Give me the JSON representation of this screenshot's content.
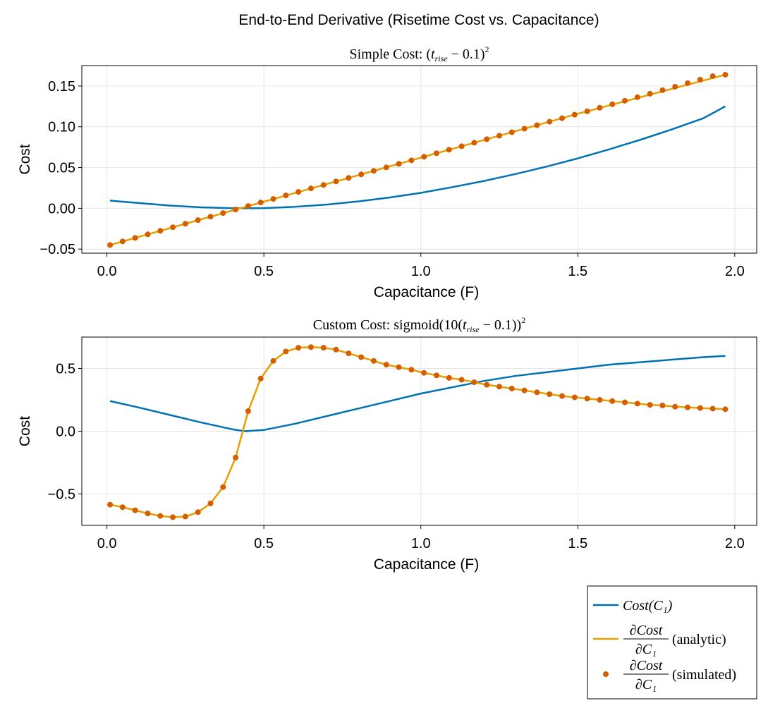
{
  "figure": {
    "suptitle": "End-to-End Derivative (Risetime Cost vs. Capacitance)"
  },
  "colors": {
    "cost": "#0072b2",
    "analytic": "#e69f00",
    "simulated": "#d55e00",
    "grid": "#e6e6e6",
    "axis": "#000000"
  },
  "legend": {
    "placement": "bottom-right",
    "entries": [
      {
        "series": "cost",
        "marker": "line",
        "text": "Cost(C₁)"
      },
      {
        "series": "analytic",
        "marker": "line",
        "num": "∂Cost",
        "den": "∂C₁",
        "suffix": "(analytic)"
      },
      {
        "series": "simulated",
        "marker": "dot",
        "num": "∂Cost",
        "den": "∂C₁",
        "suffix": "(simulated)"
      }
    ]
  },
  "chart_data": [
    {
      "type": "line",
      "title": "Simple Cost: (t_rise − 0.1)²",
      "title_main": "Simple Cost: (",
      "title_var": "t",
      "title_sub": "rise",
      "title_mid": " − 0.1)",
      "title_sup": "2",
      "title_tail": "",
      "xlabel": "Capacitance (F)",
      "ylabel": "Cost",
      "xlim": [
        -0.08,
        2.07
      ],
      "ylim": [
        -0.055,
        0.175
      ],
      "xticks": [
        0.0,
        0.5,
        1.0,
        1.5,
        2.0
      ],
      "xtick_labels": [
        "0.0",
        "0.5",
        "1.0",
        "1.5",
        "2.0"
      ],
      "yticks": [
        -0.05,
        0.0,
        0.05,
        0.1,
        0.15
      ],
      "ytick_labels": [
        "−0.05",
        "0.00",
        "0.05",
        "0.10",
        "0.15"
      ],
      "grid": true,
      "series": [
        {
          "id": "cost",
          "kind": "line",
          "name": "Cost(C₁)",
          "x": [
            0.01,
            0.1,
            0.2,
            0.3,
            0.4,
            0.44,
            0.5,
            0.6,
            0.7,
            0.8,
            0.9,
            1.0,
            1.1,
            1.2,
            1.3,
            1.4,
            1.5,
            1.6,
            1.7,
            1.8,
            1.9,
            1.97
          ],
          "y": [
            0.0094,
            0.0065,
            0.0034,
            0.0012,
            0.0001,
            0.0,
            0.0002,
            0.0019,
            0.0046,
            0.0084,
            0.0132,
            0.0189,
            0.0259,
            0.0334,
            0.0419,
            0.0511,
            0.0612,
            0.0723,
            0.0841,
            0.0968,
            0.1104,
            0.125
          ]
        },
        {
          "id": "analytic",
          "kind": "line",
          "name": "∂Cost/∂C₁ (analytic)",
          "x": [
            0.01,
            0.44,
            1.0,
            1.5,
            1.97
          ],
          "y": [
            -0.045,
            0.0016,
            0.0621,
            0.1159,
            0.1638
          ]
        },
        {
          "id": "simulated",
          "kind": "scatter",
          "name": "∂Cost/∂C₁ (simulated)",
          "x": [
            0.01,
            0.05,
            0.09,
            0.13,
            0.17,
            0.21,
            0.25,
            0.29,
            0.33,
            0.37,
            0.41,
            0.45,
            0.49,
            0.53,
            0.57,
            0.61,
            0.65,
            0.69,
            0.73,
            0.77,
            0.81,
            0.85,
            0.89,
            0.93,
            0.97,
            1.01,
            1.05,
            1.09,
            1.13,
            1.17,
            1.21,
            1.25,
            1.29,
            1.33,
            1.37,
            1.41,
            1.45,
            1.49,
            1.53,
            1.57,
            1.61,
            1.65,
            1.69,
            1.73,
            1.77,
            1.81,
            1.85,
            1.89,
            1.93,
            1.97
          ],
          "y": [
            -0.045,
            -0.0406,
            -0.0363,
            -0.0319,
            -0.0276,
            -0.0232,
            -0.0189,
            -0.0145,
            -0.0102,
            -0.0058,
            -0.0015,
            0.0028,
            0.0072,
            0.0115,
            0.0158,
            0.0201,
            0.0244,
            0.0287,
            0.033,
            0.0373,
            0.0416,
            0.0459,
            0.0502,
            0.0545,
            0.0588,
            0.0632,
            0.0675,
            0.0718,
            0.0761,
            0.0804,
            0.0847,
            0.089,
            0.0933,
            0.0976,
            0.1019,
            0.1062,
            0.1105,
            0.1148,
            0.119,
            0.1233,
            0.1276,
            0.1319,
            0.1362,
            0.1405,
            0.1448,
            0.1491,
            0.1534,
            0.1577,
            0.162,
            0.1638
          ]
        }
      ]
    },
    {
      "type": "line",
      "title": "Custom Cost: sigmoid(10(t_rise − 0.1))²",
      "title_main": "Custom Cost: sigmoid(10(",
      "title_var": "t",
      "title_sub": "rise",
      "title_mid": " − 0.1))",
      "title_sup": "2",
      "title_tail": "",
      "xlabel": "Capacitance (F)",
      "ylabel": "Cost",
      "xlim": [
        -0.08,
        2.07
      ],
      "ylim": [
        -0.75,
        0.75
      ],
      "xticks": [
        0.0,
        0.5,
        1.0,
        1.5,
        2.0
      ],
      "xtick_labels": [
        "0.0",
        "0.5",
        "1.0",
        "1.5",
        "2.0"
      ],
      "yticks": [
        -0.5,
        0.0,
        0.5
      ],
      "ytick_labels": [
        "−0.5",
        "0.0",
        "0.5"
      ],
      "grid": true,
      "series": [
        {
          "id": "cost",
          "kind": "line",
          "name": "Cost(C₁)",
          "x": [
            0.01,
            0.1,
            0.2,
            0.3,
            0.4,
            0.44,
            0.5,
            0.6,
            0.7,
            0.8,
            0.9,
            1.0,
            1.1,
            1.2,
            1.3,
            1.4,
            1.5,
            1.6,
            1.7,
            1.8,
            1.9,
            1.97
          ],
          "y": [
            0.24,
            0.19,
            0.13,
            0.07,
            0.015,
            0.0,
            0.01,
            0.06,
            0.12,
            0.18,
            0.24,
            0.3,
            0.35,
            0.4,
            0.44,
            0.47,
            0.5,
            0.53,
            0.55,
            0.57,
            0.59,
            0.6
          ]
        },
        {
          "id": "analytic",
          "kind": "line",
          "name": "∂Cost/∂C₁ (analytic)",
          "x": [
            0.01,
            0.05,
            0.09,
            0.13,
            0.17,
            0.21,
            0.25,
            0.29,
            0.33,
            0.37,
            0.41,
            0.45,
            0.49,
            0.53,
            0.57,
            0.61,
            0.65,
            0.69,
            0.73,
            0.77,
            0.81,
            0.85,
            0.89,
            0.93,
            0.97,
            1.01,
            1.05,
            1.09,
            1.13,
            1.17,
            1.21,
            1.25,
            1.29,
            1.33,
            1.37,
            1.41,
            1.45,
            1.49,
            1.53,
            1.57,
            1.61,
            1.65,
            1.69,
            1.73,
            1.77,
            1.81,
            1.85,
            1.89,
            1.93,
            1.97
          ],
          "y": [
            -0.585,
            -0.605,
            -0.63,
            -0.655,
            -0.675,
            -0.685,
            -0.68,
            -0.645,
            -0.575,
            -0.445,
            -0.21,
            0.16,
            0.42,
            0.56,
            0.635,
            0.665,
            0.67,
            0.665,
            0.65,
            0.62,
            0.59,
            0.56,
            0.53,
            0.51,
            0.49,
            0.465,
            0.445,
            0.425,
            0.41,
            0.39,
            0.37,
            0.355,
            0.34,
            0.325,
            0.31,
            0.295,
            0.28,
            0.27,
            0.26,
            0.25,
            0.24,
            0.23,
            0.22,
            0.21,
            0.205,
            0.195,
            0.19,
            0.185,
            0.18,
            0.175
          ]
        },
        {
          "id": "simulated",
          "kind": "scatter",
          "name": "∂Cost/∂C₁ (simulated)",
          "x": [
            0.01,
            0.05,
            0.09,
            0.13,
            0.17,
            0.21,
            0.25,
            0.29,
            0.33,
            0.37,
            0.41,
            0.45,
            0.49,
            0.53,
            0.57,
            0.61,
            0.65,
            0.69,
            0.73,
            0.77,
            0.81,
            0.85,
            0.89,
            0.93,
            0.97,
            1.01,
            1.05,
            1.09,
            1.13,
            1.17,
            1.21,
            1.25,
            1.29,
            1.33,
            1.37,
            1.41,
            1.45,
            1.49,
            1.53,
            1.57,
            1.61,
            1.65,
            1.69,
            1.73,
            1.77,
            1.81,
            1.85,
            1.89,
            1.93,
            1.97
          ],
          "y": [
            -0.585,
            -0.605,
            -0.63,
            -0.655,
            -0.675,
            -0.685,
            -0.68,
            -0.645,
            -0.575,
            -0.445,
            -0.21,
            0.16,
            0.42,
            0.56,
            0.635,
            0.665,
            0.67,
            0.665,
            0.65,
            0.62,
            0.59,
            0.56,
            0.53,
            0.51,
            0.49,
            0.465,
            0.445,
            0.425,
            0.41,
            0.39,
            0.37,
            0.355,
            0.34,
            0.325,
            0.31,
            0.295,
            0.28,
            0.27,
            0.26,
            0.25,
            0.24,
            0.23,
            0.22,
            0.21,
            0.205,
            0.195,
            0.19,
            0.185,
            0.18,
            0.175
          ]
        }
      ]
    }
  ]
}
